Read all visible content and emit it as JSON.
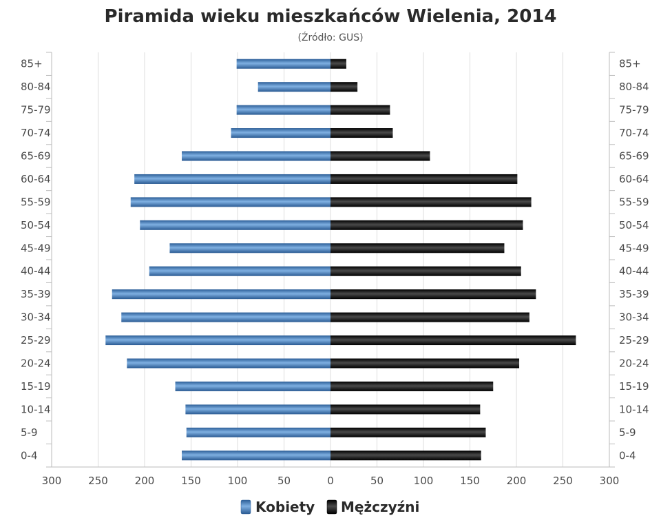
{
  "chart_data": {
    "type": "bar",
    "orientation": "horizontal-diverging",
    "title": "Piramida wieku mieszkańców Wielenia, 2014",
    "subtitle": "(Źródło: GUS)",
    "categories": [
      "85+",
      "80-84",
      "75-79",
      "70-74",
      "65-69",
      "60-64",
      "55-59",
      "50-54",
      "45-49",
      "40-44",
      "35-39",
      "30-34",
      "25-29",
      "20-24",
      "15-19",
      "10-14",
      "5-9",
      "0-4"
    ],
    "series": [
      {
        "name": "Kobiety",
        "direction": "left",
        "color": "#3a77b8",
        "values": [
          101,
          78,
          101,
          107,
          160,
          211,
          215,
          205,
          173,
          195,
          235,
          225,
          242,
          219,
          167,
          156,
          155,
          160
        ]
      },
      {
        "name": "Mężczyźni",
        "direction": "right",
        "color": "#1a1a1a",
        "values": [
          17,
          29,
          64,
          67,
          107,
          201,
          216,
          207,
          187,
          205,
          221,
          214,
          264,
          203,
          175,
          161,
          167,
          162
        ]
      }
    ],
    "xlim": [
      -300,
      300
    ],
    "xticks": [
      "300",
      "250",
      "200",
      "150",
      "100",
      "50",
      "0",
      "50",
      "100",
      "150",
      "200",
      "250",
      "300"
    ],
    "grid": true,
    "legend_position": "bottom-center"
  }
}
